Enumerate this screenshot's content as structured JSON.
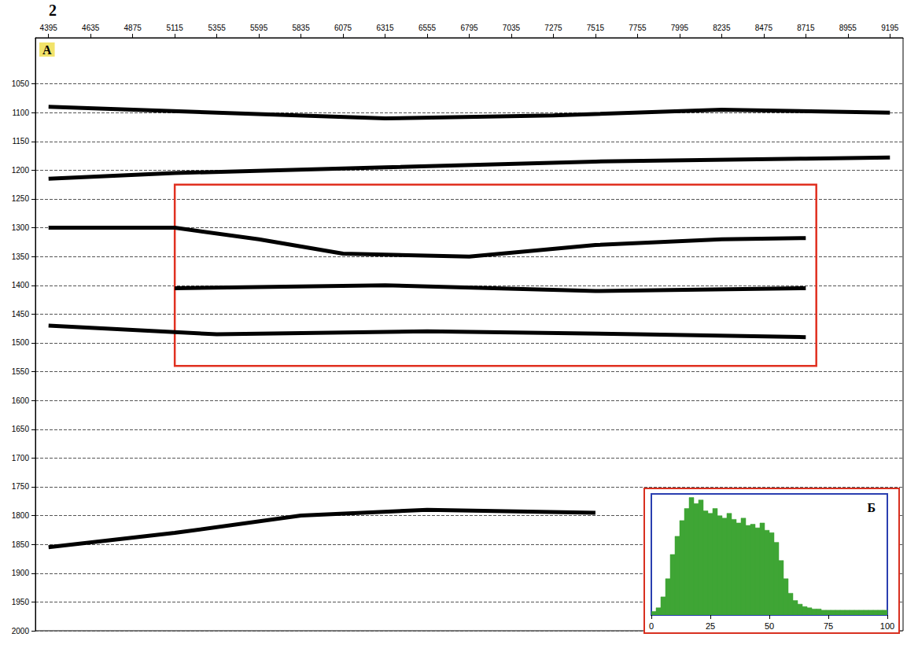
{
  "figure_label": "2",
  "chart_data": [
    {
      "type": "line",
      "panel": "A",
      "xlim": [
        4320,
        9270
      ],
      "xticks": [
        4395,
        4635,
        4875,
        5115,
        5355,
        5595,
        5835,
        6075,
        6315,
        6555,
        6795,
        7035,
        7275,
        7515,
        7755,
        7995,
        8235,
        8475,
        8715,
        8955,
        9195
      ],
      "ylim": [
        970,
        2000
      ],
      "yticks": [
        1050,
        1100,
        1150,
        1200,
        1250,
        1300,
        1350,
        1400,
        1450,
        1500,
        1550,
        1600,
        1650,
        1700,
        1750,
        1800,
        1850,
        1900,
        1950,
        2000
      ],
      "grid": true,
      "series": [
        {
          "color": "#000000",
          "x": [
            4395,
            5355,
            6315,
            7275,
            8235,
            9195
          ],
          "values": [
            1090,
            1100,
            1110,
            1105,
            1095,
            1100
          ]
        },
        {
          "color": "#000000",
          "x": [
            4395,
            5115,
            6315,
            7515,
            8715,
            9195
          ],
          "values": [
            1215,
            1205,
            1195,
            1185,
            1180,
            1178
          ]
        },
        {
          "color": "#000000",
          "x": [
            4395,
            5115,
            5595,
            6075,
            6795,
            7515,
            8235,
            8715
          ],
          "values": [
            1300,
            1300,
            1320,
            1345,
            1350,
            1330,
            1320,
            1318
          ]
        },
        {
          "color": "#000000",
          "x": [
            5115,
            6315,
            7515,
            8715
          ],
          "values": [
            1405,
            1400,
            1410,
            1405
          ]
        },
        {
          "color": "#000000",
          "x": [
            4395,
            5355,
            6555,
            7755,
            8715
          ],
          "values": [
            1470,
            1485,
            1480,
            1485,
            1490
          ]
        },
        {
          "color": "#000000",
          "x": [
            4395,
            5115,
            5835,
            6555,
            7515
          ],
          "values": [
            1855,
            1830,
            1800,
            1790,
            1795
          ]
        }
      ],
      "annotations": [
        {
          "type": "rectangle",
          "color": "#e03020",
          "x": [
            5115,
            8775
          ],
          "y": [
            1225,
            1540
          ]
        }
      ]
    },
    {
      "type": "histogram",
      "panel": "Б",
      "color": "#3fa535",
      "bins": [
        0,
        2,
        4,
        6,
        8,
        10,
        12,
        14,
        16,
        18,
        20,
        22,
        24,
        26,
        28,
        30,
        32,
        34,
        36,
        38,
        40,
        42,
        44,
        46,
        48,
        50,
        52,
        54,
        56,
        58,
        60,
        62,
        64,
        66,
        68,
        70,
        72,
        74,
        76,
        78,
        80,
        82,
        84,
        86,
        88,
        90,
        92,
        94,
        96,
        98,
        100
      ],
      "counts": [
        3,
        6,
        15,
        30,
        50,
        65,
        78,
        88,
        97,
        92,
        95,
        86,
        84,
        88,
        82,
        80,
        84,
        79,
        76,
        80,
        74,
        75,
        72,
        76,
        70,
        68,
        60,
        45,
        30,
        18,
        12,
        9,
        7,
        6,
        5,
        5,
        4,
        4,
        4,
        4,
        4,
        4,
        4,
        4,
        4,
        4,
        4,
        4,
        4,
        4
      ],
      "xlim": [
        0,
        100
      ],
      "xticks": [
        0,
        25,
        50,
        75,
        100
      ],
      "ylim": [
        0,
        100
      ],
      "tick_labels": "x"
    }
  ]
}
